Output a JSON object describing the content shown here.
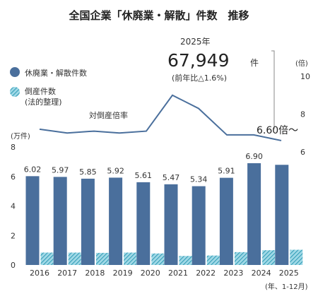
{
  "chart_data": {
    "type": "bar",
    "title": "全国企業「休廃業・解散」件数　推移",
    "categories": [
      "2016",
      "2017",
      "2018",
      "2019",
      "2020",
      "2021",
      "2022",
      "2023",
      "2024",
      "2025"
    ],
    "x_unit_note": "(年、1-12月)",
    "left_axis": {
      "unit": "(万件)",
      "ylim": [
        0,
        8
      ],
      "ticks": [
        "0",
        "2",
        "4",
        "6",
        "8"
      ]
    },
    "right_axis": {
      "unit": "(倍)",
      "ylim": [
        6,
        12
      ],
      "ticks": [
        "6",
        "8",
        "10"
      ]
    },
    "series": [
      {
        "name": "休廃業・解散件数",
        "kind": "bar",
        "axis": "left",
        "color": "#4a6f9c",
        "values": [
          6.02,
          5.97,
          5.85,
          5.92,
          5.61,
          5.47,
          5.34,
          5.91,
          6.9,
          6.79
        ],
        "labels": [
          "6.02",
          "5.97",
          "5.85",
          "5.92",
          "5.61",
          "5.47",
          "5.34",
          "5.91",
          "6.90",
          ""
        ]
      },
      {
        "name": "倒産件数",
        "name_line2": "(法的整理)",
        "kind": "bar",
        "axis": "left",
        "color": "#4fb3c8",
        "pattern": "hatched",
        "values": [
          0.84,
          0.84,
          0.82,
          0.84,
          0.78,
          0.61,
          0.64,
          0.87,
          1.0,
          1.03
        ]
      },
      {
        "name": "対倒産倍率",
        "kind": "line",
        "axis": "right",
        "color": "#4a6f9c",
        "values": [
          7.2,
          7.0,
          7.1,
          7.0,
          7.1,
          9.0,
          8.3,
          6.9,
          6.9,
          6.6
        ]
      }
    ],
    "legend_position": "left",
    "annotations": {
      "year": "2025年",
      "count": "67,949",
      "count_unit": "件",
      "yoy": "(前年比△1.6%)",
      "ratio": "6.60倍～"
    }
  }
}
